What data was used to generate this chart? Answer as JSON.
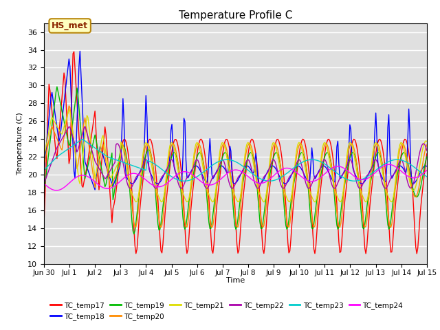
{
  "title": "Temperature Profile C",
  "xlabel": "Time",
  "ylabel": "Temperature (C)",
  "ylim": [
    10,
    37
  ],
  "yticks": [
    10,
    12,
    14,
    16,
    18,
    20,
    22,
    24,
    26,
    28,
    30,
    32,
    34,
    36
  ],
  "annotation_text": "HS_met",
  "annotation_color": "#8B2500",
  "annotation_bg": "#FFFFC0",
  "annotation_edge": "#B8860B",
  "bg_color": "#E0E0E0",
  "series_colors": {
    "TC_temp17": "#FF0000",
    "TC_temp18": "#0000FF",
    "TC_temp19": "#00BB00",
    "TC_temp20": "#FF8C00",
    "TC_temp21": "#DDDD00",
    "TC_temp22": "#AA00AA",
    "TC_temp23": "#00CCCC",
    "TC_temp24": "#FF00FF"
  },
  "xtick_labels": [
    "Jun 30",
    "Jul 1",
    "Jul 2",
    "Jul 3",
    "Jul 4",
    "Jul 5",
    "Jul 6",
    "Jul 7",
    "Jul 8",
    "Jul 9",
    "Jul 10",
    "Jul 11",
    "Jul 12",
    "Jul 13",
    "Jul 14",
    "Jul 15"
  ],
  "n_days": 16,
  "figsize": [
    6.4,
    4.8
  ],
  "dpi": 100
}
